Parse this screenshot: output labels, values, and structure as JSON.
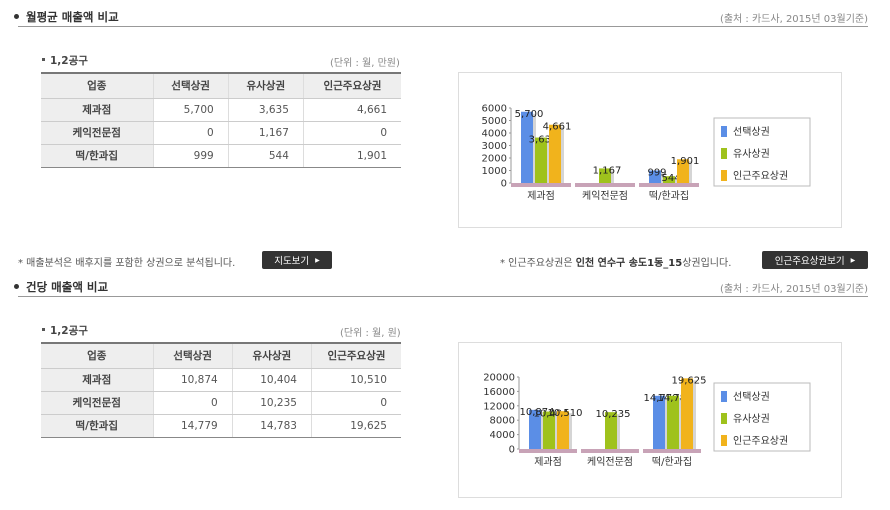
{
  "sections": [
    {
      "title": "월평균 매출액 비교",
      "source": "(출처 : 카드사, 2015년 03월기준)",
      "area": "1,2공구",
      "unit": "(단위 : 월, 만원)",
      "table": {
        "headers": [
          "업종",
          "선택상권",
          "유사상권",
          "인근주요상권"
        ],
        "rows": [
          [
            "제과점",
            "5,700",
            "3,635",
            "4,661"
          ],
          [
            "케익전문점",
            "0",
            "1,167",
            "0"
          ],
          [
            "떡/한과집",
            "999",
            "544",
            "1,901"
          ]
        ]
      }
    },
    {
      "title": "건당 매출액 비교",
      "source": "(출처 : 카드사, 2015년 03월기준)",
      "area": "1,2공구",
      "unit": "(단위 : 월, 원)",
      "table": {
        "headers": [
          "업종",
          "선택상권",
          "유사상권",
          "인근주요상권"
        ],
        "rows": [
          [
            "제과점",
            "10,874",
            "10,404",
            "10,510"
          ],
          [
            "케익전문점",
            "0",
            "10,235",
            "0"
          ],
          [
            "떡/한과집",
            "14,779",
            "14,783",
            "19,625"
          ]
        ]
      }
    }
  ],
  "notes": {
    "left_text": "* 매출분석은 배후지를 포함한 상권으로 분석됩니다.",
    "map_button": "지도보기",
    "right_prefix": "* 인근주요상권은 ",
    "right_bold": "인천 연수구 송도1동_15",
    "right_suffix": "상권입니다.",
    "nearby_button": "인근주요상권보기"
  },
  "colors": {
    "series1": "#5b8ee6",
    "series2": "#9fc21c",
    "series3": "#f1b31c"
  },
  "chart_data": [
    {
      "type": "bar",
      "categories": [
        "제과점",
        "케익전문점",
        "떡/한과집"
      ],
      "series": [
        {
          "name": "선택상권",
          "values": [
            5700,
            0,
            999
          ]
        },
        {
          "name": "유사상권",
          "values": [
            3635,
            1167,
            544
          ]
        },
        {
          "name": "인근주요상권",
          "values": [
            4661,
            0,
            1901
          ]
        }
      ],
      "yticks": [
        "6000",
        "5000",
        "4000",
        "3000",
        "2000",
        "1000",
        "0"
      ],
      "ylim": [
        0,
        6000
      ],
      "legend": "right"
    },
    {
      "type": "bar",
      "categories": [
        "제과점",
        "케익전문점",
        "떡/한과집"
      ],
      "series": [
        {
          "name": "선택상권",
          "values": [
            10874,
            0,
            14779
          ]
        },
        {
          "name": "유사상권",
          "values": [
            10404,
            10235,
            14783
          ]
        },
        {
          "name": "인근주요상권",
          "values": [
            10510,
            0,
            19625
          ]
        }
      ],
      "yticks": [
        "20000",
        "16000",
        "12000",
        "8000",
        "4000",
        "0"
      ],
      "ylim": [
        0,
        20000
      ],
      "legend": "right"
    }
  ]
}
